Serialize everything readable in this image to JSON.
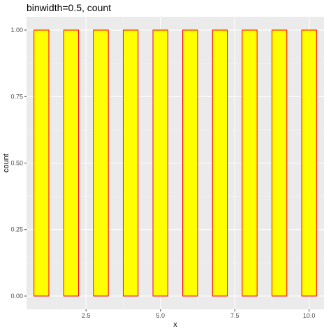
{
  "chart_data": {
    "type": "bar",
    "title": "binwidth=0.5, count",
    "xlabel": "x",
    "ylabel": "count",
    "x_bin_centers": [
      1,
      2,
      3,
      4,
      5,
      6,
      7,
      8,
      9,
      10
    ],
    "bin_width": 0.5,
    "values": [
      1,
      1,
      1,
      1,
      1,
      1,
      1,
      1,
      1,
      1
    ],
    "xlim": [
      0.5,
      10.5
    ],
    "ylim": [
      -0.05,
      1.05
    ],
    "x_ticks": [
      2.5,
      5.0,
      7.5,
      10.0
    ],
    "x_tick_labels": [
      "2.5",
      "5.0",
      "7.5",
      "10.0"
    ],
    "y_ticks": [
      0,
      0.25,
      0.5,
      0.75,
      1.0
    ],
    "y_tick_labels": [
      "0.00",
      "0.25",
      "0.50",
      "0.75",
      "1.00"
    ],
    "grid": true,
    "colors": {
      "panel_background": "#ebebeb",
      "grid_major": "#ffffff",
      "grid_minor": "#f2f2f2",
      "bar_fill": "#ffff00",
      "bar_outline": "#ff0000"
    }
  }
}
